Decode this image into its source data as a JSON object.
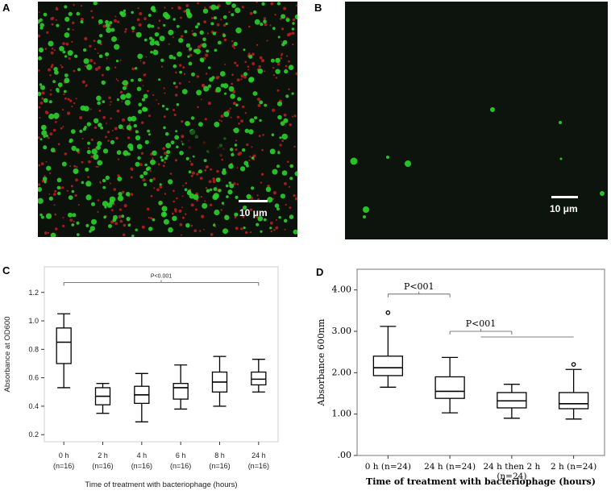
{
  "panels": {
    "a": {
      "letter": "A",
      "scale_bar": "10 μm"
    },
    "b": {
      "letter": "B",
      "scale_bar": "10 μm"
    },
    "c": {
      "letter": "C"
    },
    "d": {
      "letter": "D"
    }
  },
  "colors": {
    "live_cell": "#2bd02b",
    "dead_cell": "#c02020",
    "background": "#0c110c"
  },
  "chart_data": [
    {
      "type": "box",
      "panel": "C",
      "ylabel": "Absorbance at OD600",
      "xlabel": "Time of treatment with bacteriophage (hours)",
      "ylim": [
        0.15,
        1.38
      ],
      "yticks": [
        "0.2",
        "0.4",
        "0.6",
        "0.8",
        "1.0",
        "1.2"
      ],
      "ytick_values": [
        0.2,
        0.4,
        0.6,
        0.8,
        1.0,
        1.2
      ],
      "categories": [
        "0 h",
        "2 h",
        "4 h",
        "6 h",
        "8 h",
        "24 h"
      ],
      "category_n": [
        "(n=16)",
        "(n=16)",
        "(n=16)",
        "(n=16)",
        "(n=16)",
        "(n=16)"
      ],
      "boxes": [
        {
          "min": 0.53,
          "q1": 0.7,
          "median": 0.85,
          "q3": 0.95,
          "max": 1.05
        },
        {
          "min": 0.35,
          "q1": 0.41,
          "median": 0.47,
          "q3": 0.53,
          "max": 0.56
        },
        {
          "min": 0.29,
          "q1": 0.42,
          "median": 0.48,
          "q3": 0.54,
          "max": 0.63
        },
        {
          "min": 0.38,
          "q1": 0.45,
          "median": 0.53,
          "q3": 0.56,
          "max": 0.69
        },
        {
          "min": 0.4,
          "q1": 0.5,
          "median": 0.57,
          "q3": 0.64,
          "max": 0.75
        },
        {
          "min": 0.5,
          "q1": 0.55,
          "median": 0.59,
          "q3": 0.64,
          "max": 0.73
        }
      ],
      "annotations": [
        {
          "text": "P<0.001",
          "from": 0,
          "to": 5,
          "level": 1.27
        }
      ]
    },
    {
      "type": "box",
      "panel": "D",
      "ylabel": "Absorbance 600nm",
      "xlabel": "Time of treatment with bacteriophage (hours)",
      "ylim": [
        0.0,
        4.5
      ],
      "yticks": [
        ".00",
        "1.00",
        "2.00",
        "3.00",
        "4.00"
      ],
      "ytick_values": [
        0,
        1,
        2,
        3,
        4
      ],
      "categories": [
        "0 h (n=24)",
        "24 h (n=24)",
        "24 h then 2 h",
        "2 h (n=24)"
      ],
      "category_line2": [
        "",
        "",
        "(n=24)",
        ""
      ],
      "boxes": [
        {
          "min": 1.65,
          "q1": 1.93,
          "median": 2.12,
          "q3": 2.4,
          "max": 3.12,
          "outliers": [
            3.45
          ]
        },
        {
          "min": 1.03,
          "q1": 1.38,
          "median": 1.55,
          "q3": 1.9,
          "max": 2.37
        },
        {
          "min": 0.9,
          "q1": 1.15,
          "median": 1.32,
          "q3": 1.52,
          "max": 1.72
        },
        {
          "min": 0.88,
          "q1": 1.13,
          "median": 1.25,
          "q3": 1.52,
          "max": 2.08,
          "outliers": [
            2.2
          ]
        }
      ],
      "annotations": [
        {
          "text": "P<001",
          "from": 0,
          "to": 1,
          "level": 3.9
        },
        {
          "text": "P<001",
          "from": 1,
          "to": 2,
          "level": 3.0
        }
      ]
    }
  ]
}
